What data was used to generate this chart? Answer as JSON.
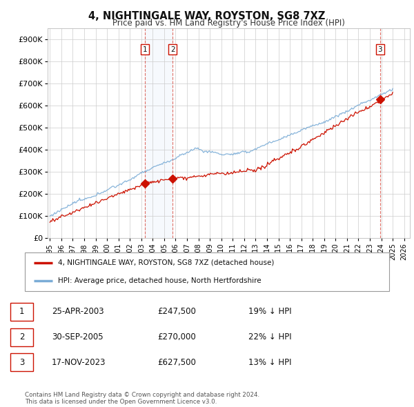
{
  "title": "4, NIGHTINGALE WAY, ROYSTON, SG8 7XZ",
  "subtitle": "Price paid vs. HM Land Registry's House Price Index (HPI)",
  "ylim": [
    0,
    950000
  ],
  "yticks": [
    0,
    100000,
    200000,
    300000,
    400000,
    500000,
    600000,
    700000,
    800000,
    900000
  ],
  "ytick_labels": [
    "£0",
    "£100K",
    "£200K",
    "£300K",
    "£400K",
    "£500K",
    "£600K",
    "£700K",
    "£800K",
    "£900K"
  ],
  "background_color": "#ffffff",
  "plot_bg_color": "#ffffff",
  "grid_color": "#cccccc",
  "sale_year_floats": [
    2003.32,
    2005.75,
    2023.88
  ],
  "sale_prices": [
    247500,
    270000,
    627500
  ],
  "sale_labels": [
    "1",
    "2",
    "3"
  ],
  "hpi_color": "#7aacd6",
  "price_color": "#cc1100",
  "legend_label_price": "4, NIGHTINGALE WAY, ROYSTON, SG8 7XZ (detached house)",
  "legend_label_hpi": "HPI: Average price, detached house, North Hertfordshire",
  "table_rows": [
    [
      "1",
      "25-APR-2003",
      "£247,500",
      "19% ↓ HPI"
    ],
    [
      "2",
      "30-SEP-2005",
      "£270,000",
      "22% ↓ HPI"
    ],
    [
      "3",
      "17-NOV-2023",
      "£627,500",
      "13% ↓ HPI"
    ]
  ],
  "footer_text": "Contains HM Land Registry data © Crown copyright and database right 2024.\nThis data is licensed under the Open Government Licence v3.0.",
  "xlim_start": 1994.8,
  "xlim_end": 2026.5,
  "xtick_years": [
    1995,
    1996,
    1997,
    1998,
    1999,
    2000,
    2001,
    2002,
    2003,
    2004,
    2005,
    2006,
    2007,
    2008,
    2009,
    2010,
    2011,
    2012,
    2013,
    2014,
    2015,
    2016,
    2017,
    2018,
    2019,
    2020,
    2021,
    2022,
    2023,
    2024,
    2025,
    2026
  ]
}
